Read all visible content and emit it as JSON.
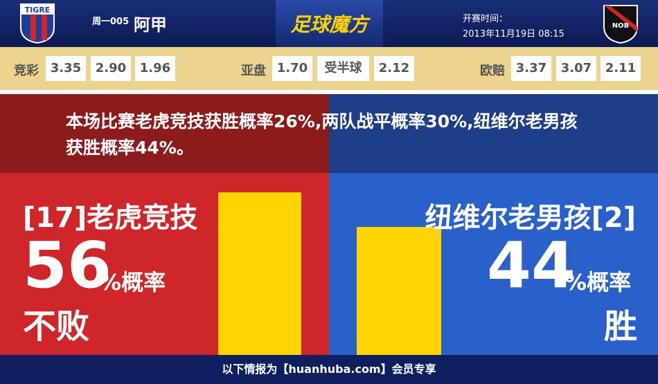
{
  "header": {
    "home_logo": "TIGRE",
    "match_no": "周一005",
    "league": "阿甲",
    "brand": "足球魔方",
    "kickoff_label": "开赛时间：",
    "kickoff_time": "2013年11月19日 08:15",
    "away_logo": "NOB"
  },
  "odds": [
    {
      "label": "竞彩",
      "values": [
        "3.35",
        "2.90",
        "1.96"
      ]
    },
    {
      "label": "亚盘",
      "values": [
        "1.70",
        "受半球",
        "2.12"
      ]
    },
    {
      "label": "欧赔",
      "values": [
        "3.37",
        "3.07",
        "2.11"
      ]
    }
  ],
  "summary": "本场比赛老虎竞技获胜概率26%,两队战平概率30%,纽维尔老男孩获胜概率44%。",
  "home": {
    "team": "[17]老虎竞技",
    "probability": 56,
    "unit": "%概率",
    "outcome": "不败"
  },
  "away": {
    "team": "纽维尔老男孩[2]",
    "probability": 44,
    "unit": "%概率",
    "outcome": "胜"
  },
  "footer": "以下情报为【huanhuba.com】会员专享"
}
